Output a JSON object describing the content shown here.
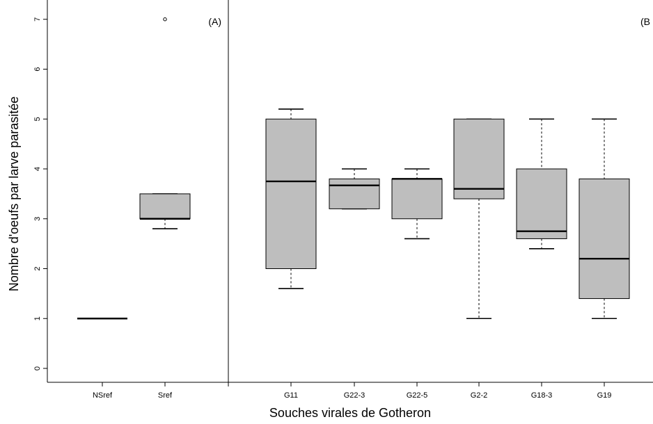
{
  "chart_data": {
    "type": "boxplot",
    "xlabel": "Souches virales de Gotheron",
    "ylabel": "Nombre d'oeufs par larve parasitée",
    "ylim": [
      -0.2,
      7.2
    ],
    "yticks": [
      "0",
      "1",
      "2",
      "3",
      "4",
      "5",
      "6",
      "7"
    ],
    "box_color": "#bebebe",
    "panels": [
      {
        "label": "(A)",
        "groups": [
          {
            "name": "NSref",
            "whisker_low": 1,
            "q1": 1,
            "median": 1,
            "q3": 1,
            "whisker_high": 1,
            "outliers": []
          },
          {
            "name": "Sref",
            "whisker_low": 2.8,
            "q1": 3.0,
            "median": 3.0,
            "q3": 3.5,
            "whisker_high": 3.5,
            "outliers": [
              7
            ]
          }
        ]
      },
      {
        "label": "(B",
        "groups": [
          {
            "name": "G11",
            "whisker_low": 1.6,
            "q1": 2.0,
            "median": 3.75,
            "q3": 5.0,
            "whisker_high": 5.2,
            "outliers": []
          },
          {
            "name": "G22-3",
            "whisker_low": 3.2,
            "q1": 3.2,
            "median": 3.67,
            "q3": 3.8,
            "whisker_high": 4.0,
            "outliers": []
          },
          {
            "name": "G22-5",
            "whisker_low": 2.6,
            "q1": 3.0,
            "median": 3.8,
            "q3": 3.8,
            "whisker_high": 4.0,
            "outliers": []
          },
          {
            "name": "G2-2",
            "whisker_low": 1.0,
            "q1": 3.4,
            "median": 3.6,
            "q3": 5.0,
            "whisker_high": 5.0,
            "outliers": []
          },
          {
            "name": "G18-3",
            "whisker_low": 2.4,
            "q1": 2.6,
            "median": 2.75,
            "q3": 4.0,
            "whisker_high": 5.0,
            "outliers": []
          },
          {
            "name": "G19",
            "whisker_low": 1.0,
            "q1": 1.4,
            "median": 2.2,
            "q3": 3.8,
            "whisker_high": 5.0,
            "outliers": []
          }
        ]
      }
    ]
  }
}
